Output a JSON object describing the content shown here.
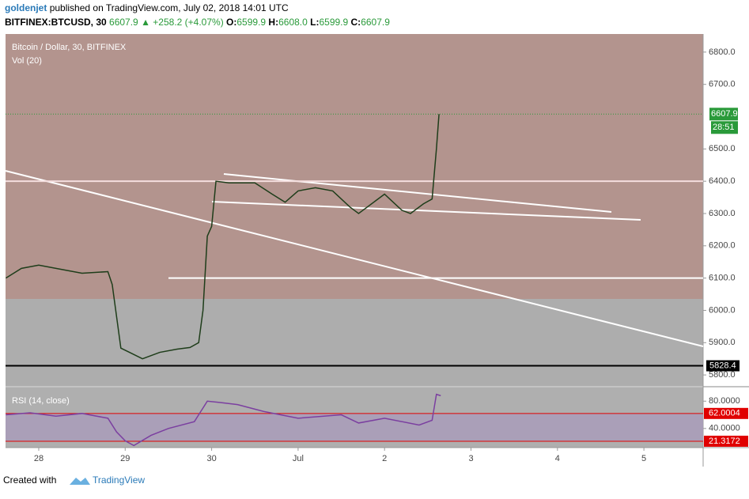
{
  "header": {
    "author": "goldenjet",
    "published": "published on TradingView.com, July 02, 2018 14:01 UTC",
    "symbol": "BITFINEX:BTCUSD, 30",
    "last": "6607.9",
    "change": "▲ +258.2 (+4.07%)",
    "ohlc": [
      {
        "label": "O:",
        "value": "6599.9"
      },
      {
        "label": "H:",
        "value": "6608.0"
      },
      {
        "label": "L:",
        "value": "6599.9"
      },
      {
        "label": "C:",
        "value": "6607.9"
      }
    ]
  },
  "chart_data": [
    {
      "type": "line",
      "title": "Bitcoin / Dollar, 30, BITFINEX",
      "subtitle": "Vol (20)",
      "color": "#1e3d1a",
      "x": [
        -0.38,
        -0.2,
        0,
        0.2,
        0.5,
        0.8,
        0.85,
        0.95,
        1.05,
        1.2,
        1.4,
        1.6,
        1.75,
        1.85,
        1.9,
        1.95,
        2.0,
        2.05,
        2.2,
        2.5,
        2.7,
        2.85,
        3.0,
        3.2,
        3.4,
        3.6,
        3.7,
        3.9,
        4.0,
        4.2,
        4.3,
        4.45,
        4.55,
        4.6,
        4.63
      ],
      "values": [
        6100,
        6130,
        6140,
        6130,
        6115,
        6120,
        6080,
        5883,
        5870,
        5850,
        5870,
        5880,
        5885,
        5900,
        6000,
        6230,
        6260,
        6400,
        6395,
        6395,
        6360,
        6335,
        6370,
        6380,
        6370,
        6320,
        6300,
        6340,
        6360,
        6310,
        6300,
        6330,
        6345,
        6500,
        6607.9
      ],
      "xlim": [
        -0.384,
        7.685
      ],
      "ylim": [
        5766,
        6856
      ],
      "yticks": [
        {
          "value": 5800,
          "label": "5800.0"
        },
        {
          "value": 5900,
          "label": "5900.0"
        },
        {
          "value": 6000,
          "label": "6000.0"
        },
        {
          "value": 6100,
          "label": "6100.0"
        },
        {
          "value": 6200,
          "label": "6200.0"
        },
        {
          "value": 6300,
          "label": "6300.0"
        },
        {
          "value": 6400,
          "label": "6400.0"
        },
        {
          "value": 6500,
          "label": "6500.0"
        },
        {
          "value": 6700,
          "label": "6700.0"
        },
        {
          "value": 6800,
          "label": "6800.0"
        }
      ],
      "last_price": 6607.9,
      "countdown": "28:51",
      "level": 5828.4,
      "hlines": [
        6400,
        6100
      ]
    },
    {
      "type": "line",
      "title": "RSI (14, close)",
      "color": "#7b3fa0",
      "x": [
        -0.38,
        -0.1,
        0.2,
        0.5,
        0.8,
        0.9,
        1.0,
        1.1,
        1.3,
        1.5,
        1.8,
        1.95,
        2.1,
        2.3,
        2.6,
        3.0,
        3.5,
        3.7,
        4.0,
        4.4,
        4.55,
        4.6,
        4.65
      ],
      "values": [
        60,
        63,
        58,
        62,
        55,
        35,
        22,
        15,
        30,
        40,
        50,
        80,
        78,
        75,
        65,
        55,
        60,
        48,
        55,
        45,
        52,
        90,
        88
      ],
      "xlim": [
        -0.384,
        7.685
      ],
      "ylim": [
        12,
        100
      ],
      "yticks": [
        {
          "value": 80,
          "label": "80.0000"
        },
        {
          "value": 40,
          "label": "40.0000"
        }
      ],
      "bands": [
        62.0004,
        21.3172
      ],
      "xticks": [
        {
          "value": 0,
          "label": "28"
        },
        {
          "value": 1,
          "label": "29"
        },
        {
          "value": 2,
          "label": "30"
        },
        {
          "value": 3,
          "label": "Jul"
        },
        {
          "value": 4,
          "label": "2"
        },
        {
          "value": 5,
          "label": "3"
        },
        {
          "value": 6,
          "label": "4"
        },
        {
          "value": 7,
          "label": "5"
        }
      ]
    }
  ],
  "footer": {
    "text": "Created with",
    "brand": "TradingView"
  }
}
